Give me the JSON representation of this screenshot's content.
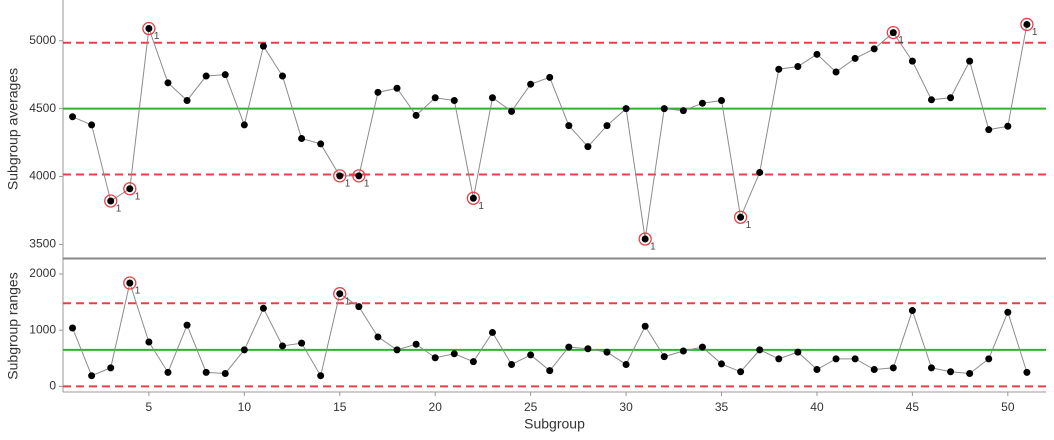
{
  "chart_data": [
    {
      "type": "line",
      "ylabel": "Subgroup averages",
      "x": [
        1,
        2,
        3,
        4,
        5,
        6,
        7,
        8,
        9,
        10,
        11,
        12,
        13,
        14,
        15,
        16,
        17,
        18,
        19,
        20,
        21,
        22,
        23,
        24,
        25,
        26,
        27,
        28,
        29,
        30,
        31,
        32,
        33,
        34,
        35,
        36,
        37,
        38,
        39,
        40,
        41,
        42,
        43,
        44,
        45,
        46,
        47,
        48,
        49,
        50,
        51
      ],
      "xlim": [
        0.5,
        52
      ],
      "ylim": [
        3400,
        5300
      ],
      "yticks": [
        3500,
        4000,
        4500,
        5000
      ],
      "series": [
        {
          "color": "#000000",
          "line_color": "#8c8c8c",
          "values": [
            4440,
            4380,
            3820,
            3910,
            5090,
            4690,
            4560,
            4740,
            4750,
            4380,
            4960,
            4740,
            4280,
            4240,
            4005,
            4005,
            4620,
            4650,
            4450,
            4580,
            4560,
            3840,
            4580,
            4480,
            4680,
            4730,
            4375,
            4220,
            4375,
            4500,
            3540,
            4500,
            4485,
            4540,
            4560,
            3700,
            4030,
            4790,
            4810,
            4900,
            4770,
            4870,
            4940,
            5060,
            4850,
            4565,
            4580,
            4850,
            4345,
            4370,
            5120
          ]
        }
      ],
      "control_lines": [
        {
          "value": 4985,
          "color": "#e8404a",
          "dashed": true
        },
        {
          "value": 4500,
          "color": "#2db42d",
          "dashed": false
        },
        {
          "value": 4015,
          "color": "#e8404a",
          "dashed": true
        }
      ],
      "flags": [
        {
          "x": 3,
          "text": "1"
        },
        {
          "x": 4,
          "text": "1"
        },
        {
          "x": 5,
          "text": "1"
        },
        {
          "x": 15,
          "text": "1"
        },
        {
          "x": 16,
          "text": "1"
        },
        {
          "x": 22,
          "text": "1"
        },
        {
          "x": 31,
          "text": "1"
        },
        {
          "x": 36,
          "text": "1"
        },
        {
          "x": 44,
          "text": "1"
        },
        {
          "x": 51,
          "text": "1"
        }
      ],
      "flag_color": "#e8404a"
    },
    {
      "type": "line",
      "ylabel": "Subgroup ranges",
      "xlabel": "Subgroup",
      "x": [
        1,
        2,
        3,
        4,
        5,
        6,
        7,
        8,
        9,
        10,
        11,
        12,
        13,
        14,
        15,
        16,
        17,
        18,
        19,
        20,
        21,
        22,
        23,
        24,
        25,
        26,
        27,
        28,
        29,
        30,
        31,
        32,
        33,
        34,
        35,
        36,
        37,
        38,
        39,
        40,
        41,
        42,
        43,
        44,
        45,
        46,
        47,
        48,
        49,
        50,
        51
      ],
      "xlim": [
        0.5,
        52
      ],
      "xticks": [
        5,
        10,
        15,
        20,
        25,
        30,
        35,
        40,
        45,
        50
      ],
      "ylim": [
        -100,
        2250
      ],
      "yticks": [
        0,
        1000,
        2000
      ],
      "series": [
        {
          "color": "#000000",
          "line_color": "#8c8c8c",
          "values": [
            1040,
            190,
            330,
            1840,
            790,
            250,
            1090,
            250,
            230,
            650,
            1390,
            720,
            770,
            190,
            1650,
            1420,
            880,
            650,
            750,
            510,
            580,
            440,
            960,
            390,
            560,
            280,
            700,
            670,
            610,
            390,
            1070,
            530,
            630,
            700,
            400,
            260,
            650,
            490,
            610,
            300,
            490,
            490,
            300,
            330,
            1350,
            330,
            260,
            230,
            490,
            1320,
            250
          ]
        }
      ],
      "control_lines": [
        {
          "value": 1480,
          "color": "#e8404a",
          "dashed": true
        },
        {
          "value": 650,
          "color": "#2db42d",
          "dashed": false
        },
        {
          "value": 0,
          "color": "#e8404a",
          "dashed": true
        }
      ],
      "flags": [
        {
          "x": 4,
          "text": "1"
        },
        {
          "x": 15,
          "text": "1"
        }
      ],
      "flag_color": "#e8404a"
    }
  ]
}
